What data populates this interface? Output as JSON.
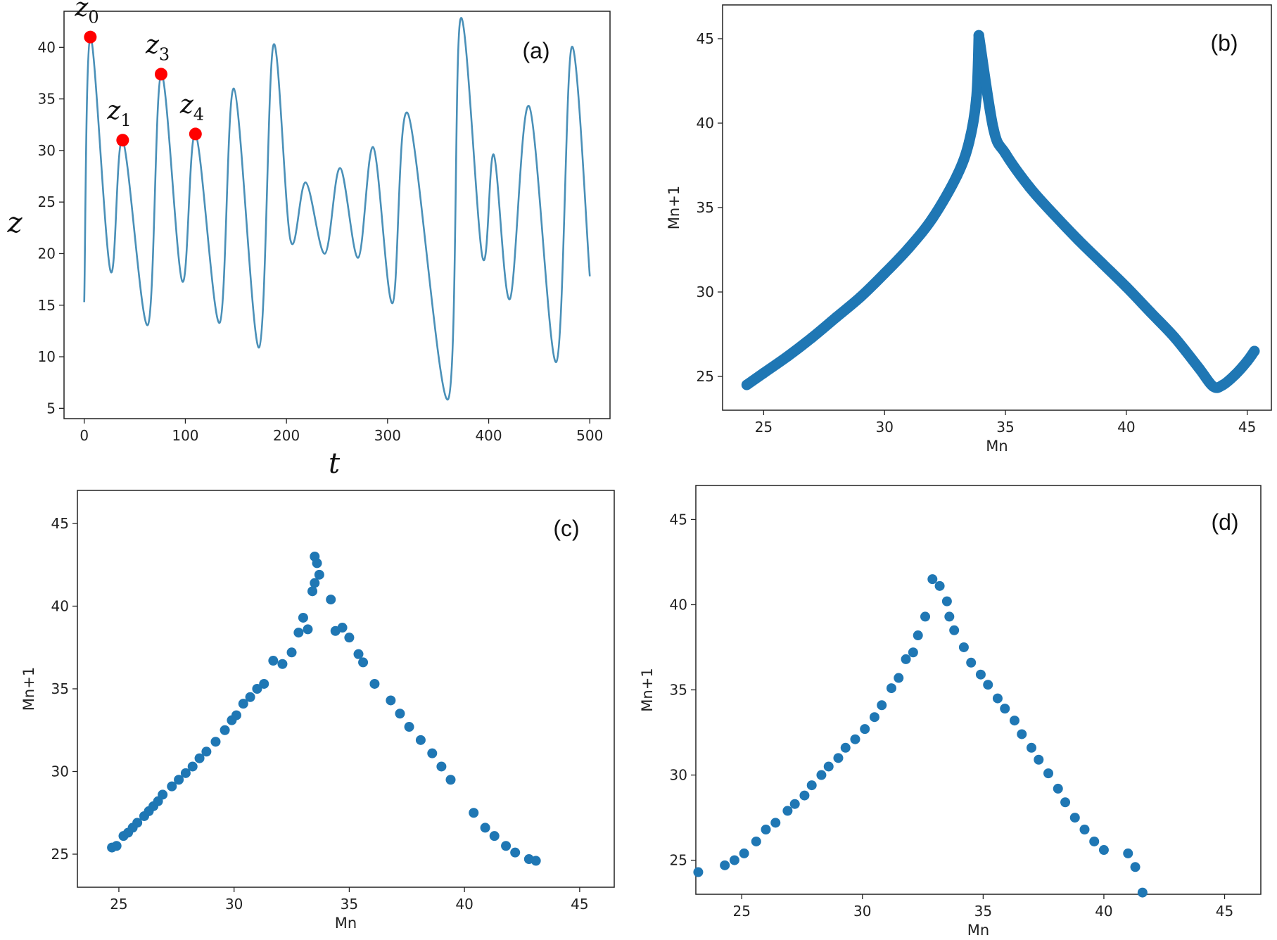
{
  "chart_data": [
    {
      "id": "a",
      "type": "line",
      "panel_label": "(a)",
      "xlabel": "t",
      "ylabel": "z",
      "xlim": [
        -20,
        520
      ],
      "ylim": [
        4,
        43.5
      ],
      "xticks": [
        0,
        100,
        200,
        300,
        400,
        500
      ],
      "yticks": [
        5,
        10,
        15,
        20,
        25,
        30,
        35,
        40
      ],
      "grid": false,
      "line_color": "#4a90b8",
      "marker_color": "#ff0000",
      "series": [
        {
          "x": [
            0,
            6,
            26,
            38,
            63,
            76,
            97,
            110,
            134,
            148,
            173,
            187,
            204,
            219,
            238,
            253,
            271,
            286,
            305,
            320,
            360,
            372,
            394,
            405,
            421,
            440,
            467,
            482,
            500
          ],
          "y": [
            15.3,
            41,
            18.3,
            31,
            13.1,
            37.4,
            17.3,
            31.6,
            13.3,
            36,
            10.9,
            40.2,
            21.3,
            26.9,
            20,
            28.3,
            19.6,
            30.3,
            15.2,
            33.6,
            5.9,
            42.7,
            19.6,
            29.6,
            15.6,
            34.3,
            9.5,
            40,
            17.8
          ]
        }
      ],
      "highlighted_points": [
        {
          "label": "z",
          "sub": "0",
          "x": 6,
          "y": 41
        },
        {
          "label": "z",
          "sub": "1",
          "x": 38,
          "y": 31
        },
        {
          "label": "z",
          "sub": "3",
          "x": 76,
          "y": 37.4
        },
        {
          "label": "z",
          "sub": "4",
          "x": 110,
          "y": 31.6
        }
      ]
    },
    {
      "id": "b",
      "type": "scatter",
      "panel_label": "(b)",
      "xlabel": "Mn",
      "ylabel": "Mn+1",
      "xlim": [
        23.3,
        46
      ],
      "ylim": [
        23,
        47
      ],
      "xticks": [
        25,
        30,
        35,
        40,
        45
      ],
      "yticks": [
        25,
        30,
        35,
        40,
        45
      ],
      "grid": false,
      "marker_color": "#1f77b4",
      "density": "dense",
      "points": [
        [
          24.3,
          24.5
        ],
        [
          25,
          25.2
        ],
        [
          26,
          26.2
        ],
        [
          27,
          27.3
        ],
        [
          28,
          28.5
        ],
        [
          29,
          29.7
        ],
        [
          30,
          31.1
        ],
        [
          31,
          32.6
        ],
        [
          32,
          34.4
        ],
        [
          33,
          36.9
        ],
        [
          33.5,
          38.9
        ],
        [
          33.8,
          41.5
        ],
        [
          33.9,
          45.2
        ],
        [
          34.5,
          39.7
        ],
        [
          35,
          38.2
        ],
        [
          36,
          36.2
        ],
        [
          37,
          34.6
        ],
        [
          38,
          33.1
        ],
        [
          39,
          31.7
        ],
        [
          40,
          30.3
        ],
        [
          41,
          28.8
        ],
        [
          42,
          27.3
        ],
        [
          43,
          25.5
        ],
        [
          43.6,
          24.4
        ],
        [
          44,
          24.5
        ],
        [
          44.5,
          25.1
        ],
        [
          45,
          25.9
        ],
        [
          45.3,
          26.5
        ]
      ]
    },
    {
      "id": "c",
      "type": "scatter",
      "panel_label": "(c)",
      "xlabel": "Mn",
      "ylabel": "Mn+1",
      "xlim": [
        23.2,
        46.5
      ],
      "ylim": [
        23,
        47
      ],
      "xticks": [
        25,
        30,
        35,
        40,
        45
      ],
      "yticks": [
        25,
        30,
        35,
        40,
        45
      ],
      "grid": false,
      "marker_color": "#1f77b4",
      "points": [
        [
          24.7,
          25.4
        ],
        [
          24.9,
          25.5
        ],
        [
          25.2,
          26.1
        ],
        [
          25.4,
          26.3
        ],
        [
          25.6,
          26.6
        ],
        [
          25.8,
          26.9
        ],
        [
          26.1,
          27.3
        ],
        [
          26.3,
          27.6
        ],
        [
          26.5,
          27.9
        ],
        [
          26.7,
          28.2
        ],
        [
          26.9,
          28.6
        ],
        [
          27.3,
          29.1
        ],
        [
          27.6,
          29.5
        ],
        [
          27.9,
          29.9
        ],
        [
          28.2,
          30.3
        ],
        [
          28.5,
          30.8
        ],
        [
          28.8,
          31.2
        ],
        [
          29.2,
          31.8
        ],
        [
          29.6,
          32.5
        ],
        [
          29.9,
          33.1
        ],
        [
          30.1,
          33.4
        ],
        [
          30.4,
          34.1
        ],
        [
          30.7,
          34.5
        ],
        [
          31,
          35
        ],
        [
          31.3,
          35.3
        ],
        [
          31.7,
          36.7
        ],
        [
          32.1,
          36.5
        ],
        [
          32.5,
          37.2
        ],
        [
          32.8,
          38.4
        ],
        [
          33,
          39.3
        ],
        [
          33.2,
          38.6
        ],
        [
          33.4,
          40.9
        ],
        [
          33.5,
          41.4
        ],
        [
          33.5,
          43
        ],
        [
          33.6,
          42.6
        ],
        [
          33.7,
          41.9
        ],
        [
          34.2,
          40.4
        ],
        [
          34.4,
          38.5
        ],
        [
          34.7,
          38.7
        ],
        [
          35,
          38.1
        ],
        [
          35.4,
          37.1
        ],
        [
          35.6,
          36.6
        ],
        [
          36.1,
          35.3
        ],
        [
          36.8,
          34.3
        ],
        [
          37.2,
          33.5
        ],
        [
          37.6,
          32.7
        ],
        [
          38.1,
          31.9
        ],
        [
          38.6,
          31.1
        ],
        [
          39,
          30.3
        ],
        [
          39.4,
          29.5
        ],
        [
          40.4,
          27.5
        ],
        [
          40.9,
          26.6
        ],
        [
          41.3,
          26.1
        ],
        [
          41.8,
          25.5
        ],
        [
          42.2,
          25.1
        ],
        [
          42.8,
          24.7
        ],
        [
          43.1,
          24.6
        ]
      ]
    },
    {
      "id": "d",
      "type": "scatter",
      "panel_label": "(d)",
      "xlabel": "Mn",
      "ylabel": "Mn+1",
      "xlim": [
        23.1,
        46.5
      ],
      "ylim": [
        23,
        47
      ],
      "xticks": [
        25,
        30,
        35,
        40,
        45
      ],
      "yticks": [
        25,
        30,
        35,
        40,
        45
      ],
      "grid": false,
      "marker_color": "#1f77b4",
      "points": [
        [
          23.2,
          24.3
        ],
        [
          24.3,
          24.7
        ],
        [
          24.7,
          25
        ],
        [
          25.1,
          25.4
        ],
        [
          25.6,
          26.1
        ],
        [
          26,
          26.8
        ],
        [
          26.4,
          27.2
        ],
        [
          26.9,
          27.9
        ],
        [
          27.2,
          28.3
        ],
        [
          27.6,
          28.8
        ],
        [
          27.9,
          29.4
        ],
        [
          28.3,
          30
        ],
        [
          28.6,
          30.5
        ],
        [
          29,
          31
        ],
        [
          29.3,
          31.6
        ],
        [
          29.7,
          32.1
        ],
        [
          30.1,
          32.7
        ],
        [
          30.5,
          33.4
        ],
        [
          30.8,
          34.1
        ],
        [
          31.2,
          35.1
        ],
        [
          31.5,
          35.7
        ],
        [
          31.8,
          36.8
        ],
        [
          32.1,
          37.2
        ],
        [
          32.3,
          38.2
        ],
        [
          32.6,
          39.3
        ],
        [
          32.9,
          41.5
        ],
        [
          33.2,
          41.1
        ],
        [
          33.5,
          40.2
        ],
        [
          33.6,
          39.3
        ],
        [
          33.8,
          38.5
        ],
        [
          34.2,
          37.5
        ],
        [
          34.5,
          36.6
        ],
        [
          34.9,
          35.9
        ],
        [
          35.2,
          35.3
        ],
        [
          35.6,
          34.5
        ],
        [
          35.9,
          33.9
        ],
        [
          36.3,
          33.2
        ],
        [
          36.6,
          32.4
        ],
        [
          37,
          31.6
        ],
        [
          37.3,
          30.9
        ],
        [
          37.7,
          30.1
        ],
        [
          38.1,
          29.2
        ],
        [
          38.4,
          28.4
        ],
        [
          38.8,
          27.5
        ],
        [
          39.2,
          26.8
        ],
        [
          39.6,
          26.1
        ],
        [
          40,
          25.6
        ],
        [
          41,
          25.4
        ],
        [
          41.3,
          24.6
        ],
        [
          41.6,
          23.1
        ]
      ]
    }
  ]
}
